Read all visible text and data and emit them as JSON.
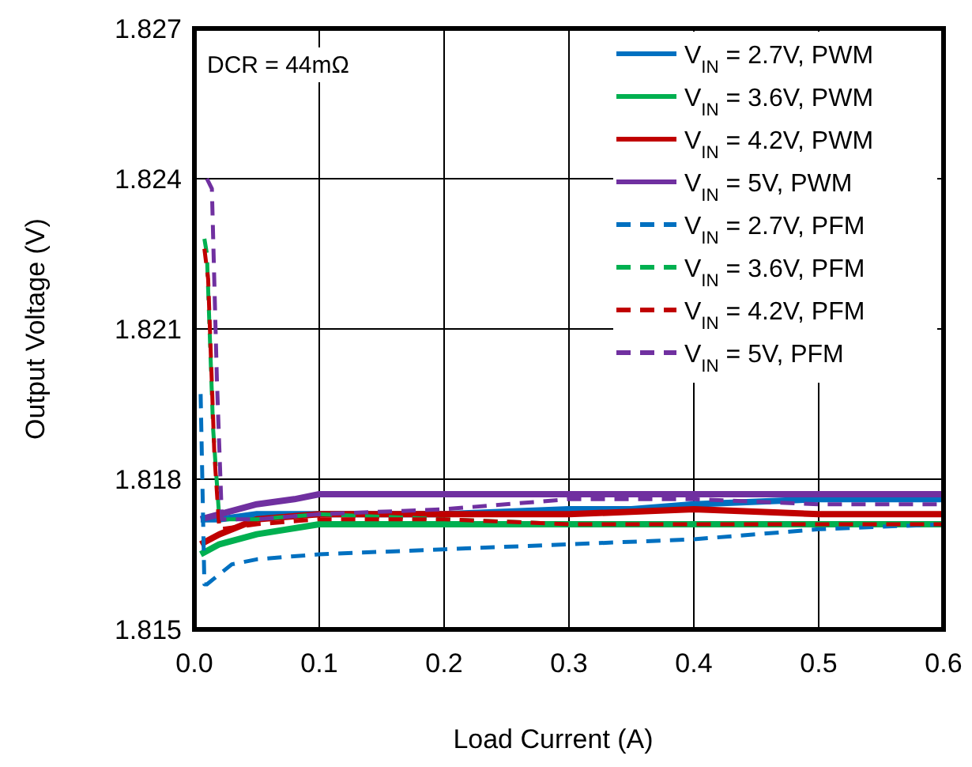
{
  "chart_data": {
    "type": "line",
    "xlabel": "Load Current (A)",
    "ylabel": "Output Voltage (V)",
    "xlim": [
      0,
      0.6
    ],
    "xticks": [
      {
        "value": 0,
        "label": "0.0"
      },
      0.1,
      0.2,
      0.3,
      0.4,
      0.5,
      0.6
    ],
    "ylim": [
      1.815,
      1.827
    ],
    "yticks": [
      1.815,
      1.818,
      1.821,
      1.824,
      1.827
    ],
    "grid": true,
    "legend": "top right",
    "marker": "none",
    "annotations": [
      "DCR = 44mΩ"
    ],
    "series": [
      {
        "name": "V$_{IN}$ = 2.7V, PWM",
        "color": "#0070c0",
        "line_style": "solid",
        "x": [
          0.005,
          0.02,
          0.05,
          0.1,
          0.2,
          0.3,
          0.35,
          0.4,
          0.5,
          0.6
        ],
        "values": [
          1.8172,
          1.8172,
          1.8173,
          1.8173,
          1.8173,
          1.8174,
          1.8174,
          1.8175,
          1.8176,
          1.8176
        ]
      },
      {
        "name": "V$_{IN}$ = 3.6V, PWM",
        "color": "#00b050",
        "line_style": "solid",
        "x": [
          0.005,
          0.02,
          0.05,
          0.1,
          0.2,
          0.3,
          0.4,
          0.5,
          0.6
        ],
        "values": [
          1.8165,
          1.8167,
          1.8169,
          1.8171,
          1.8171,
          1.8171,
          1.8171,
          1.8171,
          1.8171
        ]
      },
      {
        "name": "V$_{IN}$ = 4.2V, PWM",
        "color": "#c00000",
        "line_style": "solid",
        "x": [
          0.005,
          0.02,
          0.05,
          0.1,
          0.2,
          0.3,
          0.4,
          0.5,
          0.6
        ],
        "values": [
          1.8167,
          1.8169,
          1.8172,
          1.8173,
          1.8173,
          1.8173,
          1.8174,
          1.8173,
          1.8173
        ]
      },
      {
        "name": "V$_{IN}$ = 5V, PWM",
        "color": "#7030a0",
        "line_style": "solid",
        "x": [
          0.005,
          0.02,
          0.05,
          0.08,
          0.1,
          0.2,
          0.3,
          0.4,
          0.5,
          0.6
        ],
        "values": [
          1.8172,
          1.8173,
          1.8175,
          1.8176,
          1.8177,
          1.8177,
          1.8177,
          1.8177,
          1.8177,
          1.8177
        ]
      },
      {
        "name": "V$_{IN}$ = 2.7V, PFM",
        "color": "#0070c0",
        "line_style": "dashed",
        "x": [
          0.005,
          0.008,
          0.01,
          0.03,
          0.05,
          0.1,
          0.2,
          0.3,
          0.4,
          0.5,
          0.6
        ],
        "values": [
          1.8197,
          1.8159,
          1.8159,
          1.8163,
          1.8164,
          1.8165,
          1.8166,
          1.8167,
          1.8168,
          1.817,
          1.8171
        ]
      },
      {
        "name": "V$_{IN}$ = 3.6V, PFM",
        "color": "#00b050",
        "line_style": "dashed",
        "x": [
          0.008,
          0.01,
          0.015,
          0.02,
          0.05,
          0.1,
          0.2,
          0.3,
          0.4,
          0.5,
          0.6
        ],
        "values": [
          1.8228,
          1.8225,
          1.819,
          1.8172,
          1.8172,
          1.8173,
          1.8172,
          1.8171,
          1.8171,
          1.8171,
          1.8171
        ]
      },
      {
        "name": "V$_{IN}$ = 4.2V, PFM",
        "color": "#c00000",
        "line_style": "dashed",
        "x": [
          0.008,
          0.011,
          0.016,
          0.02,
          0.05,
          0.1,
          0.2,
          0.3,
          0.4,
          0.5,
          0.6
        ],
        "values": [
          1.8226,
          1.822,
          1.8185,
          1.817,
          1.8171,
          1.8172,
          1.8172,
          1.8171,
          1.8171,
          1.8171,
          1.8171
        ]
      },
      {
        "name": "V$_{IN}$ = 5V, PFM",
        "color": "#7030a0",
        "line_style": "dashed",
        "x": [
          0.01,
          0.014,
          0.018,
          0.022,
          0.05,
          0.1,
          0.2,
          0.3,
          0.4,
          0.5,
          0.6
        ],
        "values": [
          1.824,
          1.8238,
          1.82,
          1.8172,
          1.8172,
          1.8173,
          1.8174,
          1.8176,
          1.8176,
          1.8175,
          1.8175
        ]
      }
    ]
  }
}
